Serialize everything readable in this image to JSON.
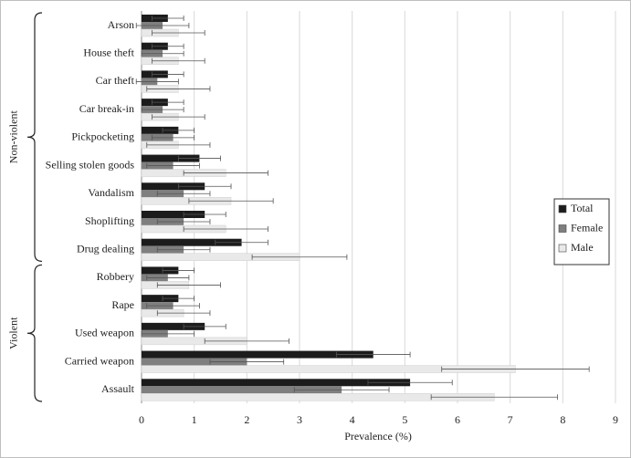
{
  "chart_data": {
    "type": "hbar",
    "x_label": "Prevalence (%)",
    "categories": [
      "Arson",
      "House theft",
      "Car theft",
      "Car break-in",
      "Pickpocketing",
      "Selling stolen goods",
      "Vandalism",
      "Shoplifting",
      "Drug dealing",
      "Robbery",
      "Rape",
      "Used weapon",
      "Carried weapon",
      "Assault"
    ],
    "groups": [
      "Non-violent",
      "Violent"
    ],
    "series": [
      {
        "name": "Total",
        "color": "#1c1c1c",
        "values": [
          0.5,
          0.5,
          0.5,
          0.5,
          0.7,
          1.1,
          1.2,
          1.2,
          1.9,
          0.7,
          0.7,
          1.2,
          4.4,
          5.1
        ],
        "errors": [
          0.3,
          0.3,
          0.3,
          0.3,
          0.3,
          0.4,
          0.5,
          0.4,
          0.5,
          0.3,
          0.3,
          0.4,
          0.7,
          0.8
        ]
      },
      {
        "name": "Female",
        "color": "#7f7f7f",
        "values": [
          0.4,
          0.4,
          0.3,
          0.4,
          0.6,
          0.6,
          0.8,
          0.8,
          0.8,
          0.5,
          0.6,
          0.5,
          2.0,
          3.8
        ],
        "errors": [
          0.5,
          0.4,
          0.4,
          0.4,
          0.4,
          0.5,
          0.5,
          0.5,
          0.5,
          0.4,
          0.5,
          0.5,
          0.7,
          0.9
        ]
      },
      {
        "name": "Male",
        "color": "#e9e9e9",
        "values": [
          0.7,
          0.7,
          0.7,
          0.7,
          0.7,
          1.6,
          1.7,
          1.6,
          3.0,
          0.9,
          0.8,
          2.0,
          7.1,
          6.7
        ],
        "errors": [
          0.5,
          0.5,
          0.6,
          0.5,
          0.6,
          0.8,
          0.8,
          0.8,
          0.9,
          0.6,
          0.5,
          0.8,
          1.4,
          1.2
        ]
      }
    ],
    "xlim": [
      0,
      9
    ],
    "xticks": [
      0,
      1,
      2,
      3,
      4,
      5,
      6,
      7,
      8,
      9
    ],
    "grid": true,
    "legend": "right"
  }
}
